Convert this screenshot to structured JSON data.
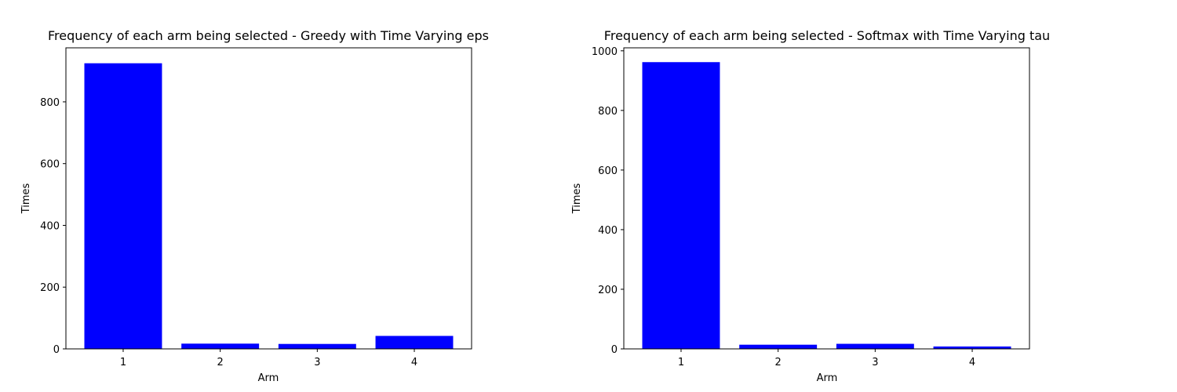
{
  "chart_data": [
    {
      "type": "bar",
      "title": "Frequency of each arm being selected - Greedy with Time Varying eps",
      "xlabel": "Arm",
      "ylabel": "Times",
      "categories": [
        "1",
        "2",
        "3",
        "4"
      ],
      "values": [
        925,
        17,
        16,
        42
      ],
      "ylim": [
        0,
        975
      ],
      "yticks": [
        0,
        200,
        400,
        600,
        800
      ],
      "color": "#0000ff",
      "grid": false
    },
    {
      "type": "bar",
      "title": "Frequency of each arm being selected - Softmax with Time Varying tau",
      "xlabel": "Arm",
      "ylabel": "Times",
      "categories": [
        "1",
        "2",
        "3",
        "4"
      ],
      "values": [
        962,
        14,
        17,
        8
      ],
      "ylim": [
        0,
        1010
      ],
      "yticks": [
        0,
        200,
        400,
        600,
        800,
        1000
      ],
      "color": "#0000ff",
      "grid": false
    }
  ]
}
